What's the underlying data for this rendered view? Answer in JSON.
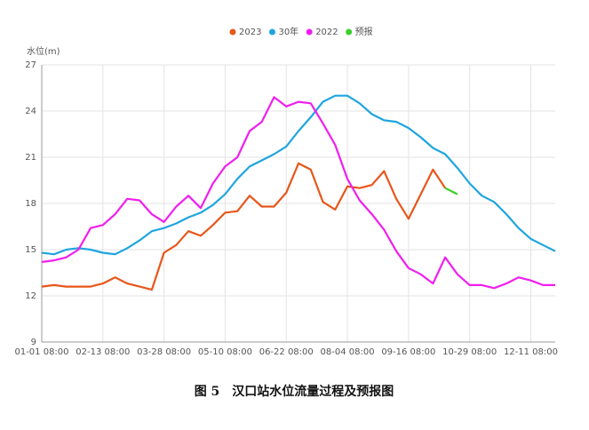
{
  "chart_data": {
    "type": "line",
    "y_label": "水位(m)",
    "categories": [
      "01-01 08:00",
      null,
      null,
      null,
      null,
      "02-13 08:00",
      null,
      null,
      null,
      null,
      "03-28 08:00",
      null,
      null,
      null,
      null,
      "05-10 08:00",
      null,
      null,
      null,
      null,
      "06-22 08:00",
      null,
      null,
      null,
      null,
      "08-04 08:00",
      null,
      null,
      null,
      null,
      "09-16 08:00",
      null,
      null,
      null,
      null,
      "10-29 08:00",
      null,
      null,
      null,
      null,
      "12-11 08:00",
      null,
      null
    ],
    "series": [
      {
        "name": "2023",
        "color": "#e8561a",
        "values": [
          12.6,
          12.7,
          12.6,
          12.6,
          12.6,
          12.8,
          13.2,
          12.8,
          12.6,
          12.4,
          14.8,
          15.3,
          16.2,
          15.9,
          16.6,
          17.4,
          17.5,
          18.5,
          17.8,
          17.8,
          18.7,
          20.6,
          20.2,
          18.1,
          17.6,
          19.1,
          19.0,
          19.2,
          20.1,
          18.3,
          17.0,
          18.6,
          20.2,
          19.0,
          null,
          null,
          null,
          null,
          null,
          null,
          null,
          null,
          null
        ]
      },
      {
        "name": "30年",
        "color": "#1ea5e0",
        "values": [
          14.8,
          14.7,
          15.0,
          15.1,
          15.0,
          14.8,
          14.7,
          15.1,
          15.6,
          16.2,
          16.4,
          16.7,
          17.1,
          17.4,
          17.9,
          18.6,
          19.6,
          20.4,
          20.8,
          21.2,
          21.7,
          22.7,
          23.6,
          24.6,
          25.0,
          25.0,
          24.5,
          23.8,
          23.4,
          23.3,
          22.9,
          22.3,
          21.6,
          21.2,
          20.3,
          19.3,
          18.5,
          18.1,
          17.3,
          16.4,
          15.7,
          15.3,
          14.9
        ]
      },
      {
        "name": "2022",
        "color": "#f01ef0",
        "values": [
          14.2,
          14.3,
          14.5,
          15.0,
          16.4,
          16.6,
          17.3,
          18.3,
          18.2,
          17.3,
          16.8,
          17.8,
          18.5,
          17.7,
          19.3,
          20.4,
          21.0,
          22.7,
          23.3,
          24.9,
          24.3,
          24.6,
          24.5,
          23.2,
          21.8,
          19.6,
          18.2,
          17.3,
          16.3,
          14.9,
          13.8,
          13.4,
          12.8,
          14.5,
          13.4,
          12.7,
          12.7,
          12.5,
          12.8,
          13.2,
          13.0,
          12.7,
          12.7
        ]
      },
      {
        "name": "预报",
        "color": "#3ccf2c",
        "values": [
          null,
          null,
          null,
          null,
          null,
          null,
          null,
          null,
          null,
          null,
          null,
          null,
          null,
          null,
          null,
          null,
          null,
          null,
          null,
          null,
          null,
          null,
          null,
          null,
          null,
          null,
          null,
          null,
          null,
          null,
          null,
          null,
          null,
          19.0,
          18.6,
          null,
          null,
          null,
          null,
          null,
          null,
          null,
          null
        ]
      }
    ],
    "ylim": [
      9,
      27
    ],
    "yticks": [
      9,
      12,
      15,
      18,
      21,
      24,
      27
    ],
    "grid": true
  },
  "caption": "图 5　汉口站水位流量过程及预报图"
}
